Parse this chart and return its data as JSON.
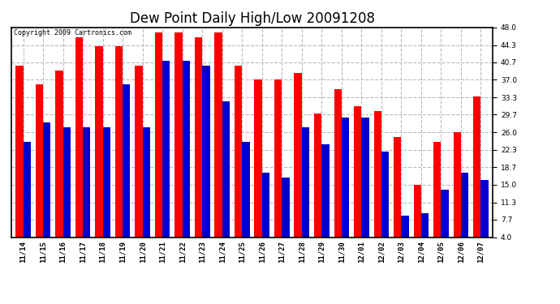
{
  "title": "Dew Point Daily High/Low 20091208",
  "copyright": "Copyright 2009 Cartronics.com",
  "dates": [
    "11/14",
    "11/15",
    "11/16",
    "11/17",
    "11/18",
    "11/19",
    "11/20",
    "11/21",
    "11/22",
    "11/23",
    "11/24",
    "11/25",
    "11/26",
    "11/27",
    "11/28",
    "11/29",
    "11/30",
    "12/01",
    "12/02",
    "12/03",
    "12/04",
    "12/05",
    "12/06",
    "12/07"
  ],
  "highs": [
    40.0,
    36.0,
    39.0,
    46.0,
    44.0,
    44.0,
    40.0,
    47.0,
    47.0,
    46.0,
    47.0,
    40.0,
    37.0,
    37.0,
    38.5,
    30.0,
    35.0,
    31.5,
    30.5,
    25.0,
    15.0,
    24.0,
    26.0,
    33.5
  ],
  "lows": [
    24.0,
    28.0,
    27.0,
    27.0,
    27.0,
    36.0,
    27.0,
    41.0,
    41.0,
    40.0,
    32.5,
    24.0,
    17.5,
    16.5,
    27.0,
    23.5,
    29.0,
    29.0,
    22.0,
    8.5,
    9.0,
    14.0,
    17.5,
    16.0
  ],
  "bar_width": 0.38,
  "high_color": "#ff0000",
  "low_color": "#0000cc",
  "background_color": "#ffffff",
  "plot_bg_color": "#ffffff",
  "grid_color": "#bbbbbb",
  "ymin": 4.0,
  "ymax": 48.0,
  "yticks": [
    4.0,
    7.7,
    11.3,
    15.0,
    18.7,
    22.3,
    26.0,
    29.7,
    33.3,
    37.0,
    40.7,
    44.3,
    48.0
  ],
  "title_fontsize": 12,
  "tick_fontsize": 6.5,
  "copyright_fontsize": 6,
  "fig_width": 6.9,
  "fig_height": 3.75,
  "fig_dpi": 100
}
